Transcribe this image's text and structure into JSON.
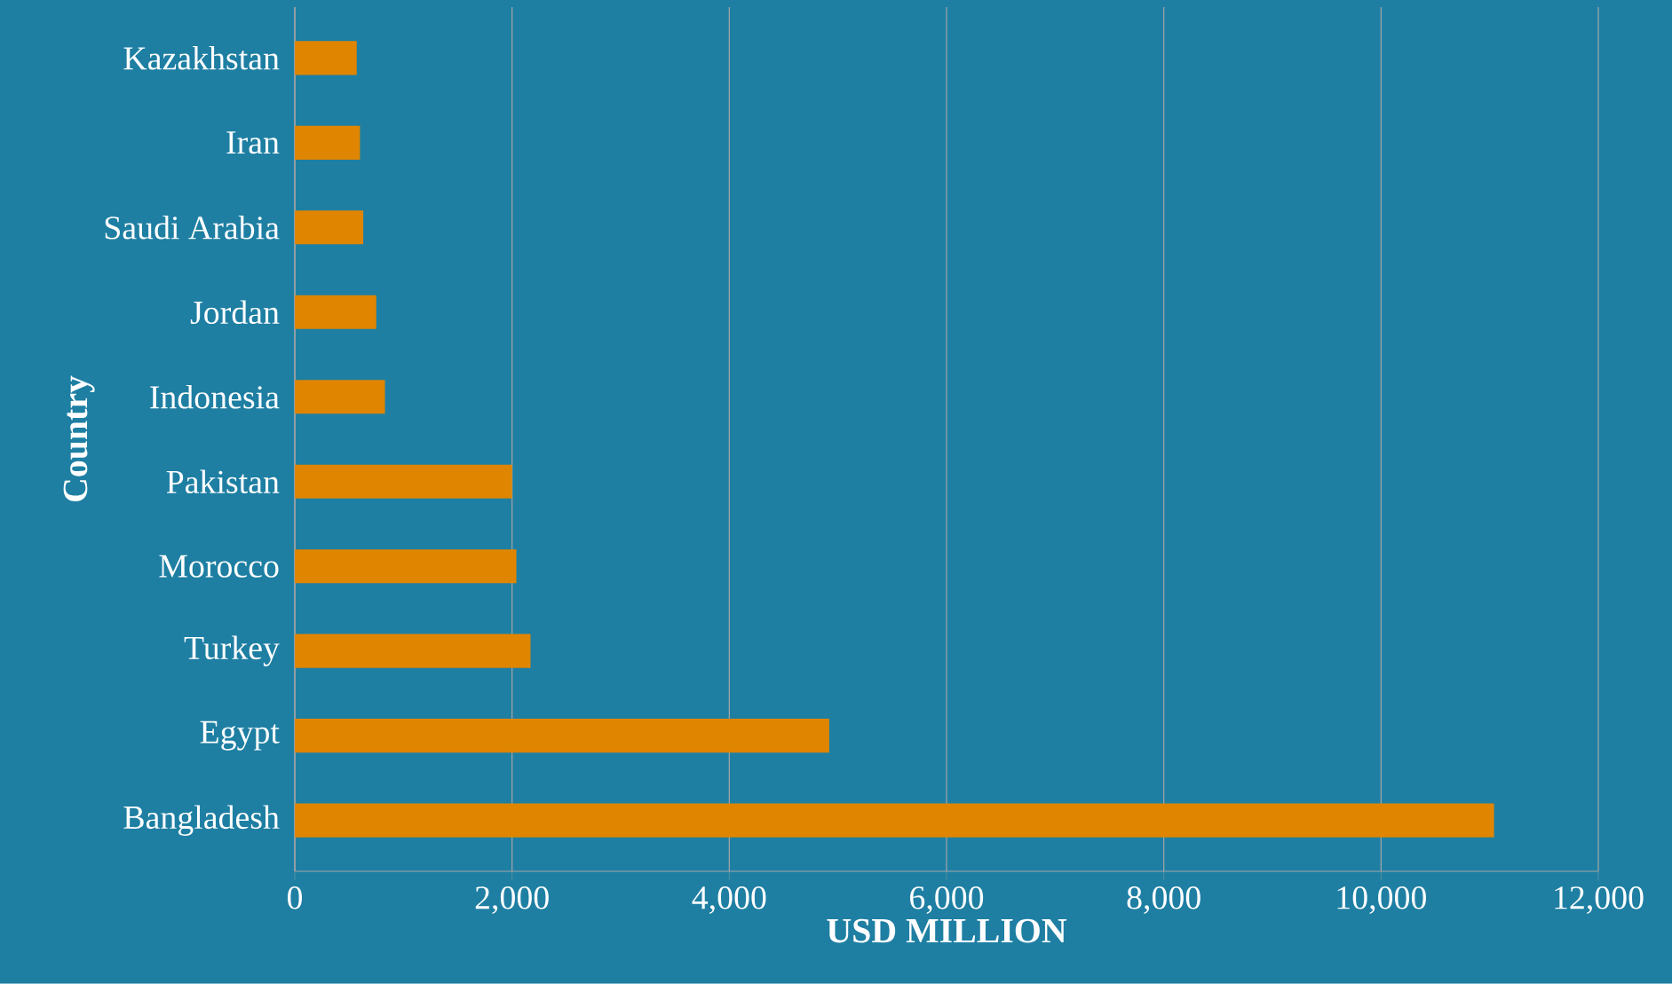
{
  "chart_data": {
    "type": "bar",
    "orientation": "horizontal",
    "xlabel": "USD MILLION",
    "ylabel": "Country",
    "categories": [
      "Kazakhstan",
      "Iran",
      "Saudi Arabia",
      "Jordan",
      "Indonesia",
      "Pakistan",
      "Morocco",
      "Turkey",
      "Egypt",
      "Bangladesh"
    ],
    "values": [
      570,
      600,
      630,
      750,
      830,
      2000,
      2040,
      2170,
      4920,
      11040
    ],
    "color": "#e08500",
    "xlim": [
      0,
      12000
    ],
    "xticks": [
      0,
      {
        "value": 2000,
        "label": "2,000"
      },
      {
        "value": 4000,
        "label": "4,000"
      },
      {
        "value": 6000,
        "label": "6,000"
      },
      {
        "value": 8000,
        "label": "8,000"
      },
      {
        "value": 10000,
        "label": "10,000"
      },
      {
        "value": 12000,
        "label": "12,000"
      }
    ],
    "grid": "x"
  }
}
